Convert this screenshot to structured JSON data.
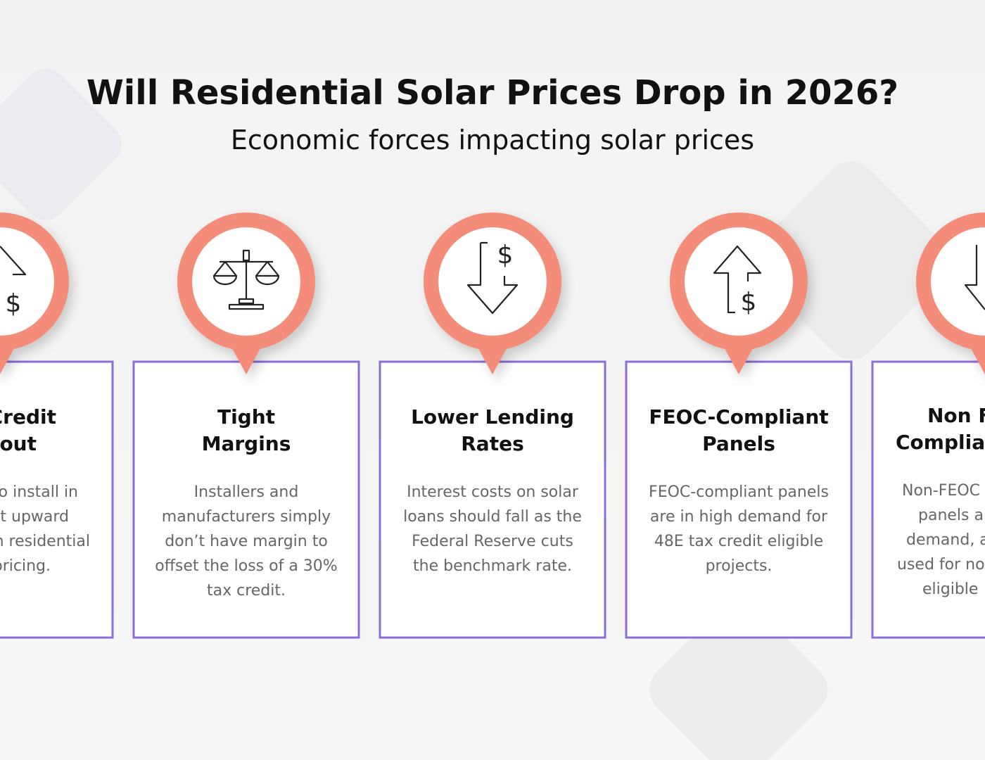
{
  "header": {
    "title": "Will Residential Solar Prices Drop in 2026?",
    "subtitle": "Economic forces impacting solar prices"
  },
  "cards": [
    {
      "icon_label": "$",
      "title_lines": [
        "Credit",
        "lout"
      ],
      "body_lines": [
        "o install in",
        "t upward",
        "n residential",
        "pricing."
      ]
    },
    {
      "title_lines": [
        "Tight",
        "Margins"
      ],
      "body_lines": [
        "Installers and",
        "manufacturers simply",
        "don’t have margin to",
        "offset the loss of a 30%",
        "tax credit."
      ]
    },
    {
      "icon_label": "$",
      "title_lines": [
        "Lower Lending",
        "Rates"
      ],
      "body_lines": [
        "Interest costs on solar",
        "loans should fall as the",
        "Federal Reserve cuts",
        "the benchmark rate."
      ]
    },
    {
      "icon_label": "$",
      "title_lines": [
        "FEOC-Compliant",
        "Panels"
      ],
      "body_lines": [
        "FEOC-compliant panels",
        "are in high demand for",
        "48E tax credit eligible",
        "projects."
      ]
    },
    {
      "title_lines": [
        "Non F",
        "Complia"
      ],
      "body_lines": [
        "Non-FEOC",
        "panels a",
        "demand, a",
        "used for no",
        "eligible"
      ]
    }
  ]
}
